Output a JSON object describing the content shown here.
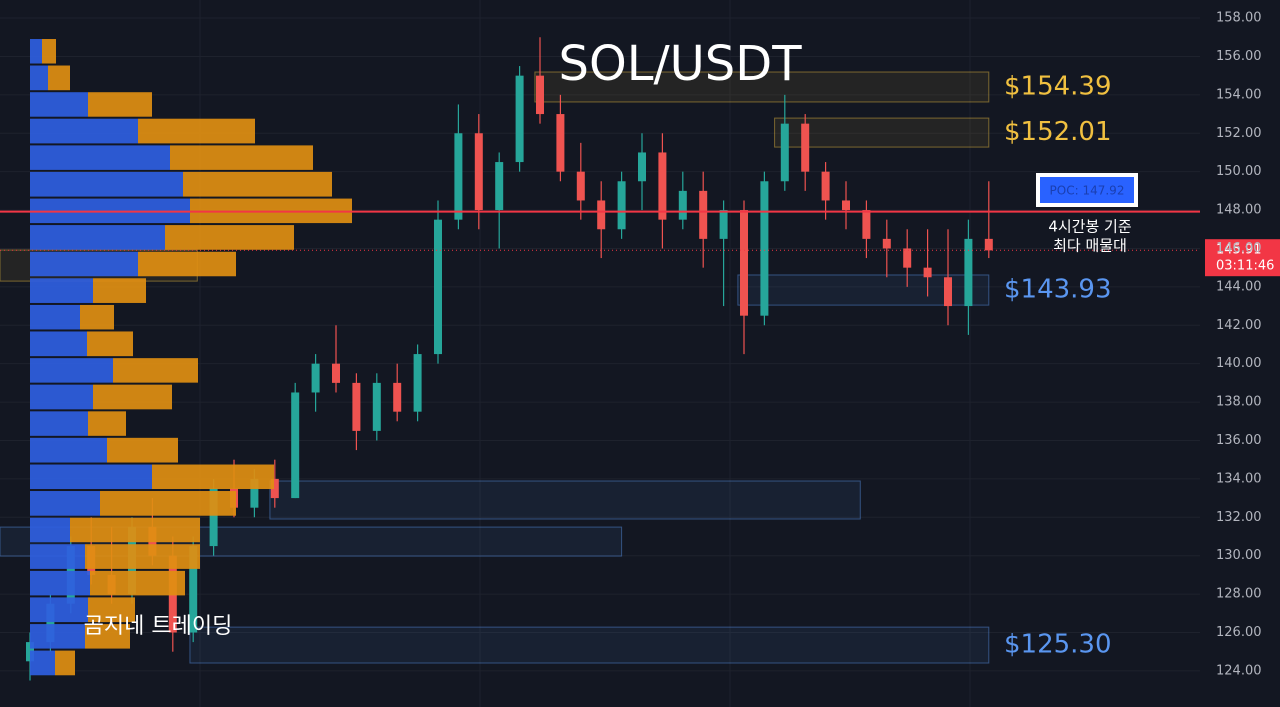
{
  "chart_data": {
    "type": "candlestick",
    "title": "SOL/USDT",
    "watermark": "곰지네 트레이딩",
    "ylim": [
      122.12,
      158.94
    ],
    "yticks": [
      {
        "value": 124,
        "label": "124.00"
      },
      {
        "value": 126,
        "label": "126.00"
      },
      {
        "value": 128,
        "label": "128.00"
      },
      {
        "value": 130,
        "label": "130.00"
      },
      {
        "value": 132,
        "label": "132.00"
      },
      {
        "value": 134,
        "label": "134.00"
      },
      {
        "value": 136,
        "label": "136.00"
      },
      {
        "value": 138,
        "label": "138.00"
      },
      {
        "value": 140,
        "label": "140.00"
      },
      {
        "value": 142,
        "label": "142.00"
      },
      {
        "value": 144,
        "label": "144.00"
      },
      {
        "value": 146,
        "label": "146.00"
      },
      {
        "value": 148,
        "label": "148.00"
      },
      {
        "value": 150,
        "label": "150.00"
      },
      {
        "value": 152,
        "label": "152.00"
      },
      {
        "value": 154,
        "label": "154.00"
      },
      {
        "value": 156,
        "label": "156.00"
      },
      {
        "value": 158,
        "label": "158.00"
      }
    ],
    "grid": true,
    "up_color": "#26a69a",
    "down_color": "#ef5350",
    "candles": {
      "open": [
        124.5,
        125.5,
        127.5,
        130.5,
        129,
        128,
        131.5,
        130,
        126,
        130.5,
        133.5,
        132.5,
        134,
        133,
        138.5,
        140,
        139,
        136.5,
        139,
        137.5,
        140.5,
        147.5,
        152,
        148,
        150.5,
        155,
        153,
        150,
        148.5,
        147,
        149.5,
        151,
        147.5,
        149,
        146.5,
        148,
        142.5,
        149.5,
        152.5,
        150,
        148.5,
        148,
        146.5,
        146,
        145,
        144.5,
        143,
        146.5
      ],
      "high": [
        126,
        128,
        131,
        132,
        131.5,
        132,
        133,
        131,
        131,
        134,
        135,
        134.5,
        135,
        139,
        140.5,
        142,
        139.5,
        139.5,
        140,
        141,
        148.5,
        153.5,
        153,
        151,
        155.5,
        157,
        154,
        151.5,
        149.5,
        150,
        152,
        152,
        150,
        150,
        148.5,
        148.5,
        150,
        154,
        153,
        150.5,
        149.5,
        148.5,
        147.5,
        147,
        147,
        147,
        147.5,
        149.5
      ],
      "low": [
        123.5,
        125,
        127,
        128.5,
        127.5,
        127.5,
        129.5,
        125,
        125.5,
        130,
        132,
        132,
        132.5,
        133,
        137.5,
        138.5,
        135.5,
        136,
        137,
        137,
        140,
        147,
        147,
        146,
        150,
        152.5,
        149.5,
        147.5,
        145.5,
        146.5,
        148,
        146,
        147,
        145,
        143,
        140.5,
        142,
        149,
        149,
        147.5,
        147,
        145.5,
        144.5,
        144,
        143.5,
        142,
        141.5,
        145.5
      ],
      "close": [
        125.5,
        127.5,
        130.5,
        129,
        128,
        131.5,
        130,
        126,
        130.5,
        133.5,
        132.5,
        134,
        133,
        138.5,
        140,
        139,
        136.5,
        139,
        137.5,
        140.5,
        147.5,
        152,
        148,
        150.5,
        155,
        153,
        150,
        148.5,
        147,
        149.5,
        151,
        147.5,
        149,
        146.5,
        148,
        142.5,
        149.5,
        152.5,
        150,
        148.5,
        148,
        146.5,
        146,
        145,
        144.5,
        143,
        146.5,
        145.9
      ]
    },
    "volume_profile": {
      "bins": [
        156.96,
        155.58,
        154.19,
        152.81,
        151.42,
        150.04,
        148.65,
        147.27,
        145.88,
        144.5,
        143.11,
        141.73,
        140.34,
        138.96,
        137.57,
        136.19,
        134.8,
        133.42,
        132.03,
        130.65,
        129.26,
        127.88,
        126.49,
        125.11,
        123.72
      ],
      "series": [
        {
          "color": "#2f5fe0",
          "values": [
            12,
            18,
            58,
            108,
            140,
            153,
            160,
            135,
            108,
            63,
            50,
            57,
            83,
            63,
            58,
            77,
            122,
            70,
            40,
            55,
            60,
            58,
            55,
            25
          ]
        },
        {
          "color": "#e08f12",
          "values": [
            14,
            22,
            64,
            117,
            143,
            149,
            162,
            129,
            98,
            53,
            34,
            46,
            85,
            79,
            38,
            71,
            122,
            136,
            130,
            115,
            95,
            47,
            45,
            20
          ]
        }
      ]
    },
    "zones": [
      {
        "label": "$154.39",
        "color": "#f0c040",
        "low": 153.63,
        "high": 155.19,
        "x": [
          24.75,
          47
        ]
      },
      {
        "label": "$152.01",
        "color": "#f0c040",
        "low": 151.28,
        "high": 152.79,
        "x": [
          36.5,
          47
        ]
      },
      {
        "label": "$143.93",
        "color": "#5a96f0",
        "low": 143.05,
        "high": 144.62,
        "x": [
          34.7,
          47
        ]
      },
      {
        "label": "$125.30",
        "color": "#5a96f0",
        "low": 124.41,
        "high": 126.28,
        "x": [
          7.84,
          47
        ]
      },
      {
        "color": "#5a96f0",
        "low": 131.91,
        "high": 133.89,
        "x": [
          11.76,
          40.7
        ]
      },
      {
        "color": "#5a96f0",
        "low": 129.98,
        "high": 131.49,
        "x": [
          -1.47,
          29
        ]
      },
      {
        "color": "#f0c040",
        "low": 144.3,
        "high": 145.92,
        "x": [
          -1.47,
          8.2
        ]
      }
    ],
    "poc": {
      "value": 147.92,
      "label": "POC: 147.92",
      "color": "#f23645"
    },
    "annotation": [
      "4시간봉 기준",
      "최다 매물대"
    ],
    "last_price": {
      "value": 145.91,
      "countdown": "03:11:46",
      "color": "#f23645"
    }
  }
}
